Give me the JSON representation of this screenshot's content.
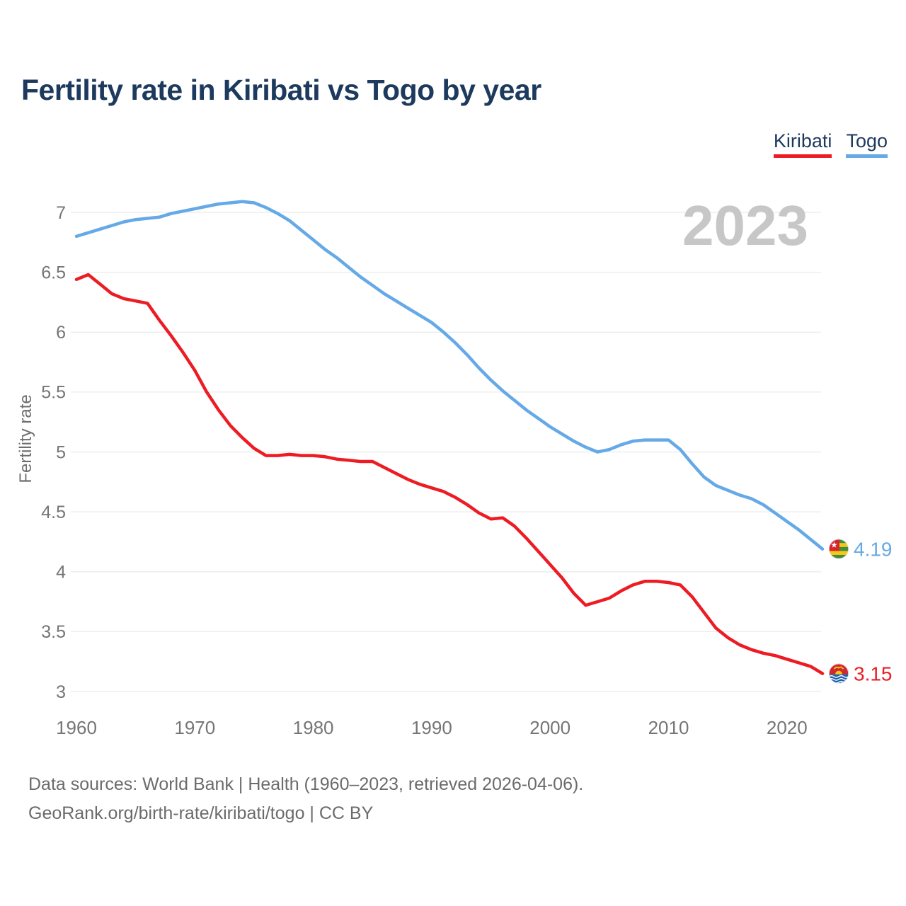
{
  "title": "Fertility rate in Kiribati vs Togo by year",
  "watermark": "2023",
  "legend": {
    "items": [
      {
        "label": "Kiribati",
        "color": "#ed1c24"
      },
      {
        "label": "Togo",
        "color": "#65a9e7"
      }
    ]
  },
  "y_axis": {
    "title": "Fertility rate",
    "ticks": [
      "7",
      "6.5",
      "6",
      "5.5",
      "5",
      "4.5",
      "4",
      "3.5",
      "3"
    ]
  },
  "x_axis": {
    "ticks": [
      "1960",
      "1970",
      "1980",
      "1990",
      "2000",
      "2010",
      "2020"
    ]
  },
  "end_labels": {
    "togo": {
      "series": "Togo",
      "value": "4.19",
      "flag": "togo-flag"
    },
    "kiribati": {
      "series": "Kiribati",
      "value": "3.15",
      "flag": "kiribati-flag"
    }
  },
  "footer": {
    "line1": "Data sources: World Bank | Health (1960–2023, retrieved 2026-04-06).",
    "line2": "GeoRank.org/birth-rate/kiribati/togo | CC BY"
  },
  "chart_data": {
    "type": "line",
    "title": "Fertility rate in Kiribati vs Togo by year",
    "xlabel": "",
    "ylabel": "Fertility rate",
    "xlim": [
      1960,
      2023
    ],
    "ylim": [
      3,
      7.2
    ],
    "grid": true,
    "legend_position": "top-right",
    "x": [
      1960,
      1961,
      1962,
      1963,
      1964,
      1965,
      1966,
      1967,
      1968,
      1969,
      1970,
      1971,
      1972,
      1973,
      1974,
      1975,
      1976,
      1977,
      1978,
      1979,
      1980,
      1981,
      1982,
      1983,
      1984,
      1985,
      1986,
      1987,
      1988,
      1989,
      1990,
      1991,
      1992,
      1993,
      1994,
      1995,
      1996,
      1997,
      1998,
      1999,
      2000,
      2001,
      2002,
      2003,
      2004,
      2005,
      2006,
      2007,
      2008,
      2009,
      2010,
      2011,
      2012,
      2013,
      2014,
      2015,
      2016,
      2017,
      2018,
      2019,
      2020,
      2021,
      2022,
      2023
    ],
    "series": [
      {
        "name": "Kiribati",
        "color": "#ed1c24",
        "final_value": 3.15,
        "values": [
          6.44,
          6.48,
          6.4,
          6.32,
          6.28,
          6.26,
          6.24,
          6.1,
          5.97,
          5.83,
          5.68,
          5.5,
          5.35,
          5.22,
          5.12,
          5.03,
          4.97,
          4.97,
          4.98,
          4.97,
          4.97,
          4.96,
          4.94,
          4.93,
          4.92,
          4.92,
          4.87,
          4.82,
          4.77,
          4.73,
          4.7,
          4.67,
          4.62,
          4.56,
          4.49,
          4.44,
          4.45,
          4.38,
          4.28,
          4.17,
          4.06,
          3.95,
          3.82,
          3.72,
          3.75,
          3.78,
          3.84,
          3.89,
          3.92,
          3.92,
          3.91,
          3.89,
          3.79,
          3.66,
          3.53,
          3.45,
          3.39,
          3.35,
          3.32,
          3.3,
          3.27,
          3.24,
          3.21,
          3.15
        ]
      },
      {
        "name": "Togo",
        "color": "#65a9e7",
        "final_value": 4.19,
        "values": [
          6.8,
          6.83,
          6.86,
          6.89,
          6.92,
          6.94,
          6.95,
          6.96,
          6.99,
          7.01,
          7.03,
          7.05,
          7.07,
          7.08,
          7.09,
          7.08,
          7.04,
          6.99,
          6.93,
          6.85,
          6.77,
          6.69,
          6.62,
          6.54,
          6.46,
          6.39,
          6.32,
          6.26,
          6.2,
          6.14,
          6.08,
          6.0,
          5.91,
          5.81,
          5.7,
          5.6,
          5.51,
          5.43,
          5.35,
          5.28,
          5.21,
          5.15,
          5.09,
          5.04,
          5.0,
          5.02,
          5.06,
          5.09,
          5.1,
          5.1,
          5.1,
          5.02,
          4.9,
          4.79,
          4.72,
          4.68,
          4.64,
          4.61,
          4.56,
          4.49,
          4.42,
          4.35,
          4.27,
          4.19
        ]
      }
    ]
  }
}
